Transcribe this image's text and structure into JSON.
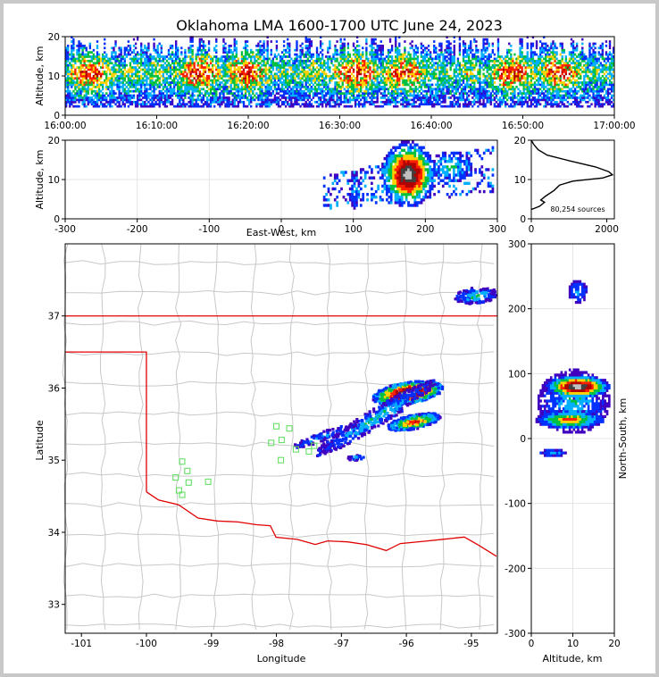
{
  "title": "Oklahoma LMA 1600-1700 UTC June 24, 2023",
  "colors": {
    "density_scale": [
      "#4000c0",
      "#0030ff",
      "#00b0ff",
      "#00c040",
      "#ffd000",
      "#ff2000",
      "#b00000",
      "#404040",
      "#c0c0c0",
      "#ffffff"
    ],
    "state_border": "#e00000",
    "county_lines": "#c8c8c8",
    "network_stations": "#66e066"
  },
  "chart_data": [
    {
      "id": "time_height",
      "type": "heatmap",
      "xlabel": "",
      "ylabel": "Altitude, km",
      "x_ticks": [
        "16:00:00",
        "16:10:00",
        "16:20:00",
        "16:30:00",
        "16:40:00",
        "16:50:00",
        "17:00:00"
      ],
      "xlim": [
        "16:00:00",
        "17:00:00"
      ],
      "y_ticks": [
        0,
        10,
        20
      ],
      "ylim": [
        0,
        20
      ]
    },
    {
      "id": "east_west_altitude",
      "type": "heatmap",
      "xlabel": "East-West, km",
      "ylabel": "Altitude, km",
      "x_ticks": [
        -300,
        -200,
        -100,
        0,
        100,
        200,
        300
      ],
      "xlim": [
        -300,
        300
      ],
      "y_ticks": [
        0,
        10,
        20
      ],
      "ylim": [
        0,
        20
      ],
      "clusters": [
        {
          "x": 175,
          "alt": 11,
          "peak": true
        },
        {
          "x": 100,
          "alt": 7,
          "peak": false
        },
        {
          "x": 235,
          "alt": 13,
          "peak": false
        }
      ]
    },
    {
      "id": "altitude_histogram",
      "type": "line",
      "annotation": "80,254 sources",
      "x_ticks": [
        0,
        2000
      ],
      "xlim": [
        0,
        2200
      ],
      "y_ticks": [
        0,
        10,
        20
      ],
      "ylim": [
        0,
        20
      ],
      "profile": [
        [
          0,
          20
        ],
        [
          60,
          19
        ],
        [
          180,
          17.6
        ],
        [
          420,
          16.2
        ],
        [
          1000,
          14.8
        ],
        [
          1700,
          13.2
        ],
        [
          2050,
          12
        ],
        [
          2150,
          11.2
        ],
        [
          1900,
          10.4
        ],
        [
          1100,
          9.6
        ],
        [
          750,
          8.6
        ],
        [
          600,
          7.2
        ],
        [
          380,
          5.8
        ],
        [
          250,
          4.8
        ],
        [
          350,
          4.2
        ],
        [
          220,
          3.2
        ],
        [
          60,
          2.6
        ],
        [
          0,
          2.4
        ]
      ]
    },
    {
      "id": "plan_view",
      "type": "heatmap",
      "xlabel": "Longitude",
      "ylabel": "Latitude",
      "x_ticks": [
        -101,
        -100,
        -99,
        -98,
        -97,
        -96,
        -95
      ],
      "xlim": [
        -101.25,
        -94.6
      ],
      "y_ticks": [
        33,
        34,
        35,
        36,
        37
      ],
      "ylim": [
        32.6,
        38.0
      ],
      "clusters": [
        {
          "lon": -95.95,
          "lat": 35.95,
          "peak": true
        },
        {
          "lon": -95.9,
          "lat": 35.55,
          "peak": false
        },
        {
          "lon": -96.6,
          "lat": 35.65,
          "peak": false
        },
        {
          "lon": -94.9,
          "lat": 37.3,
          "peak": false
        },
        {
          "lon": -96.8,
          "lat": 35.05,
          "peak": false
        }
      ],
      "stations": [
        [
          -99.45,
          34.98
        ],
        [
          -99.37,
          34.85
        ],
        [
          -99.55,
          34.76
        ],
        [
          -99.35,
          34.69
        ],
        [
          -99.5,
          34.58
        ],
        [
          -99.45,
          34.52
        ],
        [
          -99.05,
          34.7
        ],
        [
          -98.0,
          35.47
        ],
        [
          -97.8,
          35.44
        ],
        [
          -98.08,
          35.24
        ],
        [
          -97.92,
          35.28
        ],
        [
          -97.7,
          35.15
        ],
        [
          -97.5,
          35.12
        ],
        [
          -97.42,
          35.2
        ],
        [
          -97.93,
          35.0
        ]
      ]
    },
    {
      "id": "altitude_north_south",
      "type": "heatmap",
      "xlabel": "Altitude, km",
      "ylabel": "North-South, km",
      "x_ticks": [
        0,
        10,
        20
      ],
      "xlim": [
        0,
        20
      ],
      "y_ticks": [
        300,
        200,
        100,
        0,
        -100,
        -200,
        -300
      ],
      "ylim": [
        -300,
        300
      ],
      "clusters": [
        {
          "alt": 11,
          "y": 78,
          "peak": true
        },
        {
          "alt": 9,
          "y": 27,
          "peak": false
        },
        {
          "alt": 11,
          "y": 225,
          "peak": false
        },
        {
          "alt": 5,
          "y": -24,
          "peak": false
        }
      ]
    }
  ]
}
